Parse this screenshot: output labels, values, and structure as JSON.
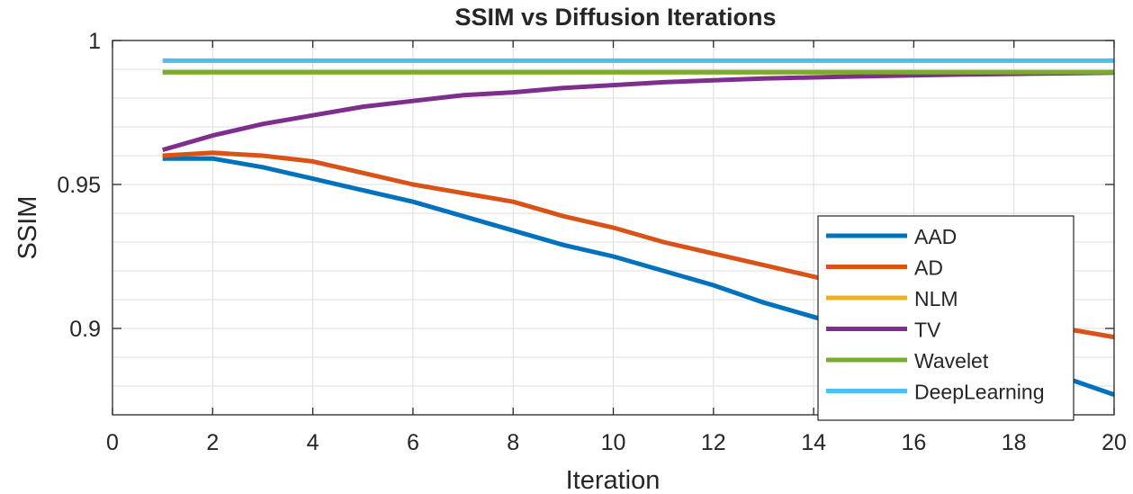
{
  "chart_data": {
    "type": "line",
    "title": "SSIM vs Diffusion Iterations",
    "xlabel": "Iteration",
    "ylabel": "SSIM",
    "xlim": [
      0,
      20
    ],
    "ylim": [
      0.87,
      1.0
    ],
    "x_ticks": [
      "0",
      "2",
      "4",
      "6",
      "8",
      "10",
      "12",
      "14",
      "16",
      "18",
      "20"
    ],
    "y_ticks": [
      "0.9",
      "0.95",
      "1"
    ],
    "grid": true,
    "legend_position": "bottom-right",
    "series": [
      {
        "name": "AAD",
        "color": "#0072BD",
        "x": [
          1,
          2,
          3,
          4,
          5,
          6,
          7,
          8,
          9,
          10,
          11,
          12,
          13,
          14,
          15,
          16,
          17,
          18,
          19,
          20
        ],
        "y": [
          0.959,
          0.959,
          0.956,
          0.952,
          0.948,
          0.944,
          0.939,
          0.934,
          0.929,
          0.925,
          0.92,
          0.915,
          0.909,
          0.904,
          0.899,
          0.895,
          0.891,
          0.887,
          0.883,
          0.877
        ]
      },
      {
        "name": "AD",
        "color": "#D95319",
        "x": [
          1,
          2,
          3,
          4,
          5,
          6,
          7,
          8,
          9,
          10,
          11,
          12,
          13,
          14,
          15,
          16,
          17,
          18,
          19,
          20
        ],
        "y": [
          0.96,
          0.961,
          0.96,
          0.958,
          0.954,
          0.95,
          0.947,
          0.944,
          0.939,
          0.935,
          0.93,
          0.926,
          0.922,
          0.918,
          0.914,
          0.91,
          0.906,
          0.903,
          0.9,
          0.897
        ]
      },
      {
        "name": "NLM",
        "color": "#EDB120",
        "x": [
          1,
          20
        ],
        "y": [
          0.989,
          0.989
        ]
      },
      {
        "name": "TV",
        "color": "#7E2F8E",
        "x": [
          1,
          2,
          3,
          4,
          5,
          6,
          7,
          8,
          9,
          10,
          11,
          12,
          13,
          14,
          15,
          16,
          17,
          18,
          19,
          20
        ],
        "y": [
          0.962,
          0.967,
          0.971,
          0.974,
          0.977,
          0.979,
          0.981,
          0.982,
          0.9835,
          0.9845,
          0.9855,
          0.9862,
          0.9868,
          0.9872,
          0.9876,
          0.9879,
          0.9882,
          0.9884,
          0.9886,
          0.9888
        ]
      },
      {
        "name": "Wavelet",
        "color": "#77AC30",
        "x": [
          1,
          20
        ],
        "y": [
          0.989,
          0.989
        ]
      },
      {
        "name": "DeepLearning",
        "color": "#4DBEEE",
        "x": [
          1,
          20
        ],
        "y": [
          0.993,
          0.993
        ]
      }
    ]
  }
}
